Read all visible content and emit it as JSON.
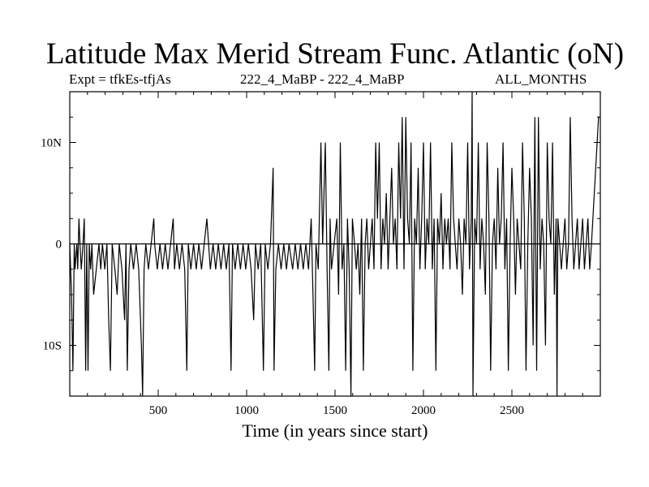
{
  "title": "Latitude Max Merid Stream Func. Atlantic (oN)",
  "subtitle_left": "Expt = tfkEs-tfjAs",
  "subtitle_center": "222_4_MaBP - 222_4_MaBP",
  "subtitle_right": "ALL_MONTHS",
  "chart_data": {
    "type": "line",
    "title": "Latitude Max Merid Stream Func. Atlantic (oN)",
    "xlabel": "Time (in years since start)",
    "ylabel": "",
    "xlim": [
      0,
      3000
    ],
    "ylim": [
      -15,
      15
    ],
    "x_ticks": [
      500,
      1000,
      1500,
      2000,
      2500
    ],
    "x_tick_labels": [
      "500",
      "1000",
      "1500",
      "2000",
      "2500"
    ],
    "y_ticks": [
      -10,
      0,
      10
    ],
    "y_tick_labels": [
      "10S",
      "0",
      "10N"
    ],
    "grid": false,
    "series": [
      {
        "values": [
          [
            0,
            0
          ],
          [
            5,
            -2.5
          ],
          [
            10,
            -5
          ],
          [
            18,
            -12.5
          ],
          [
            25,
            0
          ],
          [
            30,
            -2.5
          ],
          [
            40,
            0
          ],
          [
            45,
            -2.5
          ],
          [
            52,
            2.5
          ],
          [
            58,
            0
          ],
          [
            65,
            -2.5
          ],
          [
            75,
            0
          ],
          [
            82,
            2.5
          ],
          [
            90,
            -12.5
          ],
          [
            96,
            0
          ],
          [
            103,
            -12.5
          ],
          [
            110,
            0
          ],
          [
            118,
            -2.5
          ],
          [
            125,
            0
          ],
          [
            135,
            -5
          ],
          [
            150,
            -2.5
          ],
          [
            165,
            0
          ],
          [
            175,
            -2.5
          ],
          [
            185,
            0
          ],
          [
            198,
            -2.5
          ],
          [
            210,
            0
          ],
          [
            220,
            -7.5
          ],
          [
            230,
            -12.5
          ],
          [
            240,
            0
          ],
          [
            255,
            -2.5
          ],
          [
            268,
            -5
          ],
          [
            280,
            0
          ],
          [
            295,
            -2.5
          ],
          [
            310,
            -7.5
          ],
          [
            318,
            0
          ],
          [
            325,
            -12.5
          ],
          [
            335,
            -2.5
          ],
          [
            345,
            0
          ],
          [
            360,
            -2.5
          ],
          [
            375,
            0
          ],
          [
            390,
            -2.5
          ],
          [
            405,
            -10
          ],
          [
            412,
            -15
          ],
          [
            420,
            -2.5
          ],
          [
            430,
            0
          ],
          [
            445,
            -2.5
          ],
          [
            460,
            0
          ],
          [
            475,
            2.5
          ],
          [
            480,
            0
          ],
          [
            495,
            -2.5
          ],
          [
            510,
            0
          ],
          [
            525,
            -2.5
          ],
          [
            540,
            0
          ],
          [
            555,
            -2.5
          ],
          [
            570,
            0
          ],
          [
            585,
            2.5
          ],
          [
            592,
            -2.5
          ],
          [
            605,
            0
          ],
          [
            620,
            -2.5
          ],
          [
            635,
            0
          ],
          [
            650,
            -2.5
          ],
          [
            662,
            -12.5
          ],
          [
            670,
            0
          ],
          [
            685,
            -2.5
          ],
          [
            700,
            0
          ],
          [
            715,
            -2.5
          ],
          [
            730,
            0
          ],
          [
            745,
            -2.5
          ],
          [
            760,
            0
          ],
          [
            775,
            2.5
          ],
          [
            785,
            0
          ],
          [
            795,
            -2.5
          ],
          [
            810,
            0
          ],
          [
            825,
            -2.5
          ],
          [
            840,
            0
          ],
          [
            855,
            -2.5
          ],
          [
            870,
            0
          ],
          [
            885,
            -2.5
          ],
          [
            900,
            0
          ],
          [
            912,
            -12.5
          ],
          [
            920,
            0
          ],
          [
            935,
            -2.5
          ],
          [
            950,
            0
          ],
          [
            965,
            -2.5
          ],
          [
            980,
            0
          ],
          [
            995,
            -2.5
          ],
          [
            1010,
            0
          ],
          [
            1025,
            -2.5
          ],
          [
            1040,
            -7.5
          ],
          [
            1050,
            0
          ],
          [
            1065,
            -2.5
          ],
          [
            1080,
            0
          ],
          [
            1095,
            -12.5
          ],
          [
            1105,
            0
          ],
          [
            1120,
            -2.5
          ],
          [
            1135,
            0
          ],
          [
            1150,
            7.5
          ],
          [
            1155,
            -12.5
          ],
          [
            1165,
            -2.5
          ],
          [
            1180,
            0
          ],
          [
            1195,
            -2.5
          ],
          [
            1210,
            0
          ],
          [
            1225,
            -2.5
          ],
          [
            1240,
            0
          ],
          [
            1260,
            -2.5
          ],
          [
            1275,
            0
          ],
          [
            1290,
            -2.5
          ],
          [
            1305,
            0
          ],
          [
            1320,
            -2.5
          ],
          [
            1335,
            0
          ],
          [
            1350,
            -2.5
          ],
          [
            1365,
            2.5
          ],
          [
            1375,
            -5
          ],
          [
            1385,
            -12.5
          ],
          [
            1392,
            0
          ],
          [
            1405,
            -2.5
          ],
          [
            1420,
            10
          ],
          [
            1430,
            0
          ],
          [
            1445,
            10
          ],
          [
            1455,
            -2.5
          ],
          [
            1465,
            -12.5
          ],
          [
            1472,
            2.5
          ],
          [
            1480,
            -2.5
          ],
          [
            1495,
            0
          ],
          [
            1510,
            2.5
          ],
          [
            1520,
            -5
          ],
          [
            1530,
            10
          ],
          [
            1540,
            -2.5
          ],
          [
            1550,
            0
          ],
          [
            1560,
            -12.5
          ],
          [
            1570,
            2.5
          ],
          [
            1580,
            -2.5
          ],
          [
            1590,
            -15
          ],
          [
            1598,
            2.5
          ],
          [
            1610,
            0
          ],
          [
            1620,
            -2.5
          ],
          [
            1630,
            0
          ],
          [
            1640,
            -5
          ],
          [
            1650,
            2.5
          ],
          [
            1660,
            -12.5
          ],
          [
            1670,
            0
          ],
          [
            1680,
            2.5
          ],
          [
            1690,
            -2.5
          ],
          [
            1700,
            0
          ],
          [
            1710,
            2.5
          ],
          [
            1720,
            -2.5
          ],
          [
            1730,
            10
          ],
          [
            1740,
            2.5
          ],
          [
            1750,
            10
          ],
          [
            1760,
            -2.5
          ],
          [
            1770,
            2.5
          ],
          [
            1780,
            0
          ],
          [
            1790,
            5
          ],
          [
            1800,
            -2.5
          ],
          [
            1810,
            2.5
          ],
          [
            1820,
            7.5
          ],
          [
            1830,
            0
          ],
          [
            1840,
            2.5
          ],
          [
            1850,
            -2.5
          ],
          [
            1860,
            10
          ],
          [
            1870,
            2.5
          ],
          [
            1880,
            12.5
          ],
          [
            1890,
            -2.5
          ],
          [
            1900,
            12.5
          ],
          [
            1910,
            2.5
          ],
          [
            1920,
            0
          ],
          [
            1930,
            10
          ],
          [
            1940,
            -12.5
          ],
          [
            1950,
            2.5
          ],
          [
            1960,
            0
          ],
          [
            1970,
            7.5
          ],
          [
            1980,
            -2.5
          ],
          [
            1990,
            2.5
          ],
          [
            2000,
            10
          ],
          [
            2010,
            -2.5
          ],
          [
            2020,
            2.5
          ],
          [
            2030,
            0
          ],
          [
            2040,
            10
          ],
          [
            2050,
            -2.5
          ],
          [
            2060,
            2.5
          ],
          [
            2070,
            -12.5
          ],
          [
            2080,
            2.5
          ],
          [
            2090,
            0
          ],
          [
            2100,
            5
          ],
          [
            2110,
            -2.5
          ],
          [
            2120,
            2.5
          ],
          [
            2130,
            0
          ],
          [
            2140,
            2.5
          ],
          [
            2150,
            -2.5
          ],
          [
            2160,
            10
          ],
          [
            2170,
            2.5
          ],
          [
            2180,
            0
          ],
          [
            2190,
            -2.5
          ],
          [
            2200,
            2.5
          ],
          [
            2210,
            0
          ],
          [
            2220,
            -5
          ],
          [
            2230,
            2.5
          ],
          [
            2240,
            0
          ],
          [
            2250,
            10
          ],
          [
            2260,
            -2.5
          ],
          [
            2270,
            2.5
          ],
          [
            2275,
            15
          ],
          [
            2280,
            -15
          ],
          [
            2290,
            2.5
          ],
          [
            2300,
            0
          ],
          [
            2310,
            10
          ],
          [
            2320,
            -2.5
          ],
          [
            2330,
            2.5
          ],
          [
            2340,
            0
          ],
          [
            2350,
            -5
          ],
          [
            2360,
            10
          ],
          [
            2370,
            2.5
          ],
          [
            2380,
            -12.5
          ],
          [
            2390,
            0
          ],
          [
            2400,
            2.5
          ],
          [
            2410,
            -2.5
          ],
          [
            2420,
            7.5
          ],
          [
            2430,
            0
          ],
          [
            2440,
            2.5
          ],
          [
            2450,
            10
          ],
          [
            2460,
            -2.5
          ],
          [
            2470,
            2.5
          ],
          [
            2480,
            -12.5
          ],
          [
            2490,
            0
          ],
          [
            2500,
            7.5
          ],
          [
            2510,
            2.5
          ],
          [
            2520,
            -5
          ],
          [
            2530,
            2.5
          ],
          [
            2540,
            0
          ],
          [
            2550,
            -2.5
          ],
          [
            2560,
            10
          ],
          [
            2570,
            2.5
          ],
          [
            2580,
            -12.5
          ],
          [
            2590,
            0
          ],
          [
            2600,
            7.5
          ],
          [
            2610,
            2.5
          ],
          [
            2620,
            -10
          ],
          [
            2630,
            12.5
          ],
          [
            2640,
            -12.5
          ],
          [
            2650,
            12.5
          ],
          [
            2660,
            -2.5
          ],
          [
            2670,
            2.5
          ],
          [
            2680,
            0
          ],
          [
            2690,
            -10
          ],
          [
            2700,
            10
          ],
          [
            2710,
            2.5
          ],
          [
            2720,
            0
          ],
          [
            2730,
            10
          ],
          [
            2740,
            -5
          ],
          [
            2750,
            2.5
          ],
          [
            2755,
            -15
          ],
          [
            2760,
            2.5
          ],
          [
            2770,
            0
          ],
          [
            2780,
            -2.5
          ],
          [
            2790,
            0
          ],
          [
            2800,
            2.5
          ],
          [
            2810,
            -2.5
          ],
          [
            2820,
            0
          ],
          [
            2830,
            12.5
          ],
          [
            2840,
            2.5
          ],
          [
            2850,
            -2.5
          ],
          [
            2860,
            0
          ],
          [
            2870,
            2.5
          ],
          [
            2880,
            -2.5
          ],
          [
            2890,
            0
          ],
          [
            2900,
            2.5
          ],
          [
            2910,
            -2.5
          ],
          [
            2920,
            0
          ],
          [
            2930,
            2.5
          ],
          [
            2940,
            -2.5
          ],
          [
            2950,
            0
          ],
          [
            2990,
            12.5
          ],
          [
            3000,
            12.5
          ]
        ]
      }
    ]
  }
}
